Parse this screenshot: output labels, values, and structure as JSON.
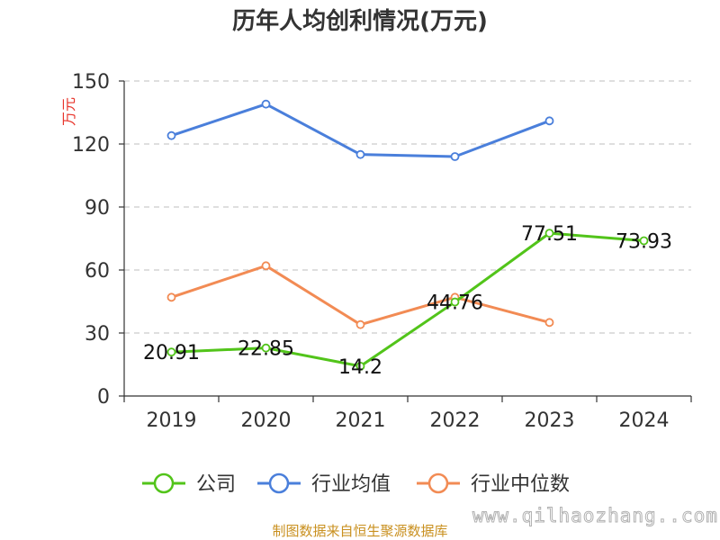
{
  "chart_data": {
    "type": "line",
    "title": "历年人均创利情况(万元)",
    "ylabel": "万元",
    "xlabel": "",
    "categories": [
      "2019",
      "2020",
      "2021",
      "2022",
      "2023",
      "2024"
    ],
    "ylim": [
      0,
      150
    ],
    "yticks": [
      0,
      30,
      60,
      90,
      120,
      150
    ],
    "grid": true,
    "legend_position": "bottom",
    "series": [
      {
        "name": "公司",
        "color": "#52c41a",
        "values": [
          20.91,
          22.85,
          14.2,
          44.76,
          77.51,
          73.93
        ],
        "labels": [
          "20.91",
          "22.85",
          "14.2",
          "44.76",
          "77.51",
          "73.93"
        ]
      },
      {
        "name": "行业均值",
        "color": "#4a7fdb",
        "values": [
          124,
          139,
          115,
          114,
          131,
          null
        ]
      },
      {
        "name": "行业中位数",
        "color": "#f28b54",
        "values": [
          47,
          62,
          34,
          47,
          35,
          null
        ]
      }
    ]
  },
  "footer": {
    "source": "制图数据来自恒生聚源数据库",
    "watermark": "www.qilhaozhang..com"
  }
}
